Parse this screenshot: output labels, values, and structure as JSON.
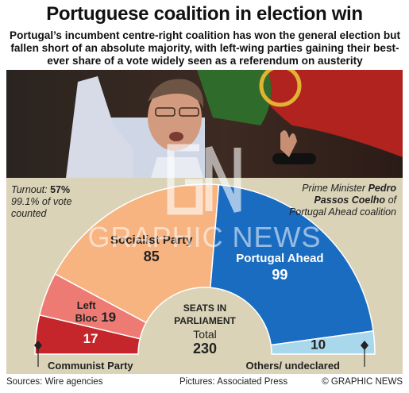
{
  "header": {
    "title": "Portuguese coalition in election win",
    "subtitle": "Portugal’s incumbent centre-right coalition has won the general election but fallen short of an absolute majority, with left-wing parties gaining their best-ever share of a vote widely seen as a referendum on austerity"
  },
  "turnout": {
    "label": "Turnout:",
    "value": "57%",
    "counted": "99.1% of vote counted"
  },
  "photo_caption": {
    "prefix": "Prime Minister",
    "name": "Pedro Passos Coelho",
    "suffix": "of Portugal Ahead coalition"
  },
  "center_label": {
    "line1": "Seats in",
    "line2": "parliament",
    "total_label": "Total",
    "total": "230"
  },
  "footer": {
    "sources": "Sources: Wire agencies",
    "pictures": "Pictures: Associated Press",
    "credit": "© GRAPHIC NEWS"
  },
  "watermark": "GRAPHIC NEWS",
  "chart_data": {
    "type": "pie",
    "subtype": "half-donut parliament",
    "total": 230,
    "slices": [
      {
        "name": "Communist Party",
        "value": 17,
        "color": "#c4262c"
      },
      {
        "name": "Left Bloc",
        "value": 19,
        "color": "#ee7b73"
      },
      {
        "name": "Socialist Party",
        "value": 85,
        "color": "#f7b380"
      },
      {
        "name": "Portugal Ahead",
        "value": 99,
        "color": "#1a6cc0"
      },
      {
        "name": "Others/ undeclared",
        "value": 10,
        "color": "#a9d8ec"
      }
    ],
    "colors": {
      "background": "#dad3b7",
      "hub": "#dad3b7"
    }
  }
}
